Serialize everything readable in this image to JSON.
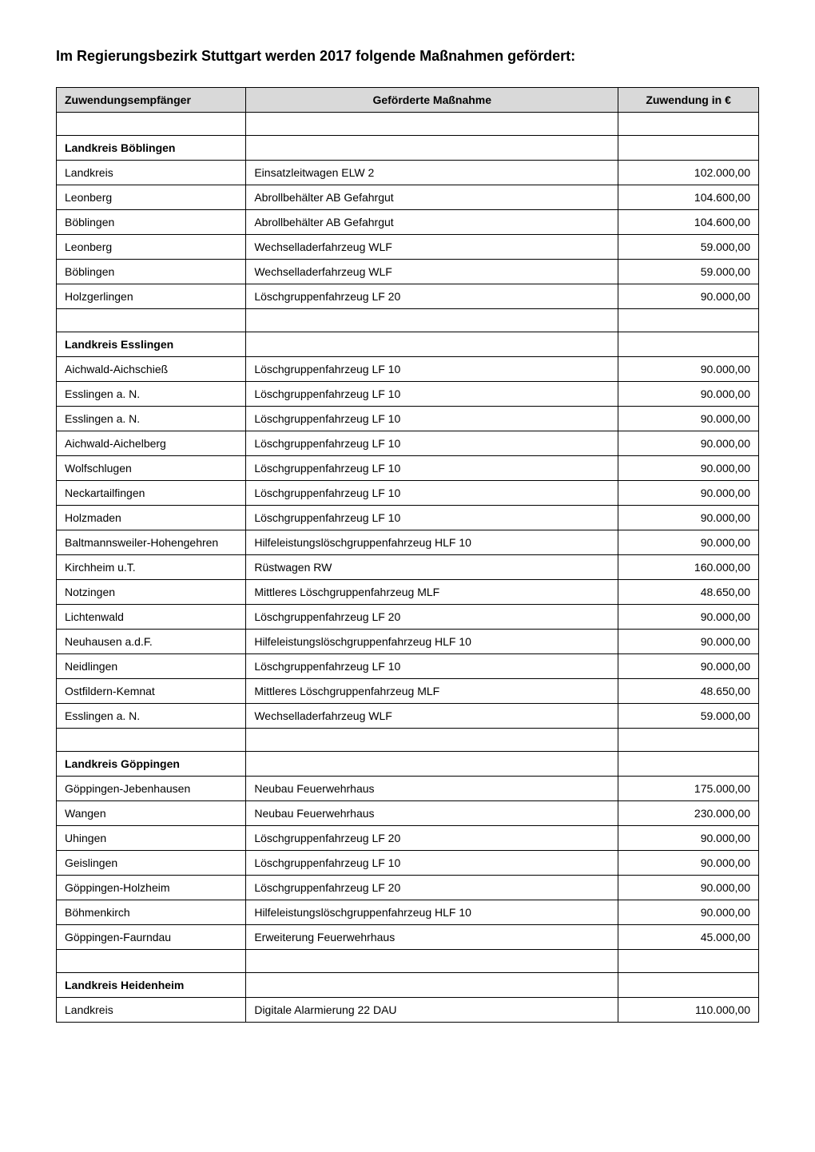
{
  "title": "Im Regierungsbezirk Stuttgart werden 2017 folgende Maßnahmen gefördert:",
  "columns": [
    "Zuwendungsempfänger",
    "Geförderte Maßnahme",
    "Zuwendung in €"
  ],
  "rows": [
    {
      "type": "spacer"
    },
    {
      "type": "section",
      "c1": "Landkreis Böblingen",
      "c2": "",
      "c3": ""
    },
    {
      "type": "data",
      "c1": "Landkreis",
      "c2": "Einsatzleitwagen ELW 2",
      "c3": "102.000,00"
    },
    {
      "type": "data",
      "c1": "Leonberg",
      "c2": "Abrollbehälter AB Gefahrgut",
      "c3": "104.600,00"
    },
    {
      "type": "data",
      "c1": "Böblingen",
      "c2": "Abrollbehälter AB Gefahrgut",
      "c3": "104.600,00"
    },
    {
      "type": "data",
      "c1": "Leonberg",
      "c2": "Wechselladerfahrzeug WLF",
      "c3": "59.000,00"
    },
    {
      "type": "data",
      "c1": "Böblingen",
      "c2": "Wechselladerfahrzeug WLF",
      "c3": "59.000,00"
    },
    {
      "type": "data",
      "c1": "Holzgerlingen",
      "c2": "Löschgruppenfahrzeug LF 20",
      "c3": "90.000,00"
    },
    {
      "type": "spacer"
    },
    {
      "type": "section",
      "c1": "Landkreis Esslingen",
      "c2": "",
      "c3": ""
    },
    {
      "type": "data",
      "c1": "Aichwald-Aichschieß",
      "c2": "Löschgruppenfahrzeug LF 10",
      "c3": "90.000,00"
    },
    {
      "type": "data",
      "c1": "Esslingen a. N.",
      "c2": "Löschgruppenfahrzeug LF 10",
      "c3": "90.000,00"
    },
    {
      "type": "data",
      "c1": "Esslingen a. N.",
      "c2": "Löschgruppenfahrzeug LF 10",
      "c3": "90.000,00"
    },
    {
      "type": "data",
      "c1": "Aichwald-Aichelberg",
      "c2": "Löschgruppenfahrzeug LF 10",
      "c3": "90.000,00"
    },
    {
      "type": "data",
      "c1": "Wolfschlugen",
      "c2": "Löschgruppenfahrzeug LF 10",
      "c3": "90.000,00"
    },
    {
      "type": "data",
      "c1": "Neckartailfingen",
      "c2": "Löschgruppenfahrzeug LF 10",
      "c3": "90.000,00"
    },
    {
      "type": "data",
      "c1": "Holzmaden",
      "c2": "Löschgruppenfahrzeug LF 10",
      "c3": "90.000,00"
    },
    {
      "type": "data",
      "c1": "Baltmannsweiler-Hohengehren",
      "c2": "Hilfeleistungslöschgruppenfahrzeug HLF 10",
      "c3": "90.000,00"
    },
    {
      "type": "data",
      "c1": "Kirchheim u.T.",
      "c2": "Rüstwagen RW",
      "c3": "160.000,00"
    },
    {
      "type": "data",
      "c1": "Notzingen",
      "c2": "Mittleres Löschgruppenfahrzeug MLF",
      "c3": "48.650,00"
    },
    {
      "type": "data",
      "c1": "Lichtenwald",
      "c2": "Löschgruppenfahrzeug LF 20",
      "c3": "90.000,00"
    },
    {
      "type": "data",
      "c1": "Neuhausen a.d.F.",
      "c2": "Hilfeleistungslöschgruppenfahrzeug HLF 10",
      "c3": "90.000,00"
    },
    {
      "type": "data",
      "c1": "Neidlingen",
      "c2": "Löschgruppenfahrzeug LF 10",
      "c3": "90.000,00"
    },
    {
      "type": "data",
      "c1": "Ostfildern-Kemnat",
      "c2": "Mittleres Löschgruppenfahrzeug MLF",
      "c3": "48.650,00"
    },
    {
      "type": "data",
      "c1": "Esslingen a. N.",
      "c2": "Wechselladerfahrzeug WLF",
      "c3": "59.000,00"
    },
    {
      "type": "spacer"
    },
    {
      "type": "section",
      "c1": "Landkreis Göppingen",
      "c2": "",
      "c3": ""
    },
    {
      "type": "data",
      "c1": "Göppingen-Jebenhausen",
      "c2": "Neubau Feuerwehrhaus",
      "c3": "175.000,00"
    },
    {
      "type": "data",
      "c1": "Wangen",
      "c2": "Neubau Feuerwehrhaus",
      "c3": "230.000,00"
    },
    {
      "type": "data",
      "c1": "Uhingen",
      "c2": "Löschgruppenfahrzeug LF 20",
      "c3": "90.000,00"
    },
    {
      "type": "data",
      "c1": "Geislingen",
      "c2": "Löschgruppenfahrzeug LF 10",
      "c3": "90.000,00"
    },
    {
      "type": "data",
      "c1": "Göppingen-Holzheim",
      "c2": "Löschgruppenfahrzeug LF 20",
      "c3": "90.000,00"
    },
    {
      "type": "data",
      "c1": "Böhmenkirch",
      "c2": "Hilfeleistungslöschgruppenfahrzeug HLF 10",
      "c3": "90.000,00"
    },
    {
      "type": "data",
      "c1": "Göppingen-Faurndau",
      "c2": "Erweiterung Feuerwehrhaus",
      "c3": "45.000,00"
    },
    {
      "type": "spacer"
    },
    {
      "type": "section",
      "c1": "Landkreis Heidenheim",
      "c2": "",
      "c3": ""
    },
    {
      "type": "data",
      "c1": "Landkreis",
      "c2": "Digitale Alarmierung 22 DAU",
      "c3": "110.000,00"
    }
  ]
}
